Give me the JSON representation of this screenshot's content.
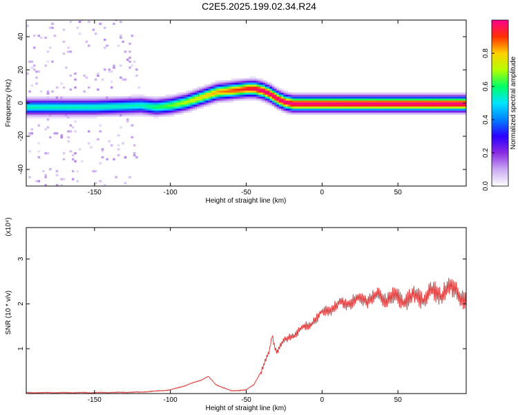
{
  "title": "C2E5.2025.199.02.34.R24",
  "colors": {
    "snr_line": "#e03a3a",
    "colormap": [
      "#ffffff",
      "#c9a9f2",
      "#8a2be2",
      "#2b00ff",
      "#0080ff",
      "#00e5ff",
      "#00ff66",
      "#b4ff00",
      "#ffd000",
      "#ff3000",
      "#ff0090"
    ]
  },
  "chart_data": [
    {
      "type": "heatmap",
      "name": "spectrogram",
      "xlabel": "Height of straight line (km)",
      "ylabel": "Frequency (Hz)",
      "xlim": [
        -195,
        95
      ],
      "ylim": [
        -50,
        50
      ],
      "xticks": [
        -150,
        -100,
        -50,
        0,
        50
      ],
      "yticks": [
        -40,
        -20,
        0,
        20,
        40
      ],
      "colorbar": {
        "label": "Normalized spectral amplitude",
        "range": [
          0,
          1
        ],
        "ticks": [
          0.0,
          0.2,
          0.4,
          0.6,
          0.8
        ]
      },
      "ridge": {
        "x": [
          -195,
          -150,
          -120,
          -110,
          -100,
          -90,
          -80,
          -70,
          -60,
          -50,
          -45,
          -40,
          -35,
          -30,
          -25,
          -20,
          -10,
          0,
          20,
          40,
          60,
          80,
          95
        ],
        "frequency": [
          -3,
          -3,
          -2,
          -3,
          -2,
          0,
          3,
          6,
          7,
          8,
          8,
          7,
          5,
          2,
          0,
          -1,
          -1,
          -1,
          -1,
          -1,
          -1,
          -1,
          -1
        ]
      }
    },
    {
      "type": "line",
      "name": "snr",
      "xlabel": "Height of straight line (km)",
      "ylabel": "SNR (10 * v/v)",
      "y_multiplier": "(x10⁴)",
      "xlim": [
        -195,
        95
      ],
      "ylim": [
        0,
        3.7
      ],
      "xticks": [
        -150,
        -100,
        -50,
        0,
        50
      ],
      "yticks": [
        1,
        2,
        3
      ],
      "series": [
        {
          "x": [
            -195,
            -150,
            -120,
            -100,
            -90,
            -80,
            -75,
            -70,
            -60,
            -50,
            -45,
            -40,
            -35,
            -33,
            -30,
            -25,
            -20,
            -15,
            -10,
            -5,
            0,
            5,
            10,
            15,
            20,
            25,
            30,
            35,
            40,
            45,
            50,
            55,
            60,
            65,
            70,
            75,
            80,
            85,
            90,
            95
          ],
          "y": [
            0.02,
            0.02,
            0.03,
            0.08,
            0.18,
            0.3,
            0.38,
            0.2,
            0.06,
            0.08,
            0.2,
            0.5,
            0.9,
            1.3,
            0.95,
            1.15,
            1.3,
            1.4,
            1.5,
            1.65,
            1.78,
            1.88,
            1.96,
            2.02,
            2.06,
            2.1,
            2.12,
            2.14,
            2.15,
            2.14,
            2.12,
            2.1,
            2.12,
            2.16,
            2.2,
            2.24,
            2.28,
            2.3,
            2.35,
            2.0
          ]
        }
      ]
    }
  ]
}
